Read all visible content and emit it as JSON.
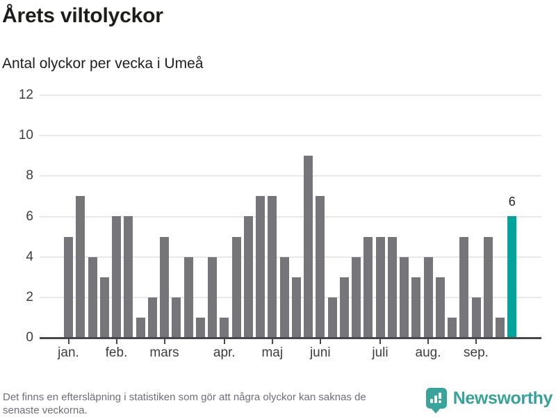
{
  "header": {
    "title": "Årets viltolyckor",
    "subtitle": "Antal olyckor per vecka i Umeå"
  },
  "chart_data": {
    "type": "bar",
    "title": "Årets viltolyckor",
    "subtitle": "Antal olyckor per vecka i Umeå",
    "x_unit": "vecka",
    "x": [
      1,
      2,
      3,
      4,
      5,
      6,
      7,
      8,
      9,
      10,
      11,
      12,
      13,
      14,
      15,
      16,
      17,
      18,
      19,
      20,
      21,
      22,
      23,
      24,
      25,
      26,
      27,
      28,
      29,
      30,
      31,
      32,
      33,
      34,
      35,
      36,
      37,
      38
    ],
    "values": [
      5,
      7,
      4,
      3,
      6,
      6,
      1,
      2,
      5,
      2,
      4,
      1,
      4,
      1,
      5,
      6,
      7,
      7,
      4,
      3,
      9,
      7,
      2,
      3,
      4,
      5,
      5,
      5,
      4,
      3,
      4,
      3,
      1,
      5,
      2,
      5,
      1,
      6
    ],
    "yticks": [
      0,
      2,
      4,
      6,
      8,
      10,
      12
    ],
    "ylim": [
      0,
      12
    ],
    "grid": true,
    "months": [
      {
        "label": "jan.",
        "week": 1
      },
      {
        "label": "feb.",
        "week": 5
      },
      {
        "label": "mars",
        "week": 9
      },
      {
        "label": "apr.",
        "week": 14
      },
      {
        "label": "maj",
        "week": 18
      },
      {
        "label": "juni",
        "week": 22
      },
      {
        "label": "juli",
        "week": 27
      },
      {
        "label": "aug.",
        "week": 31
      },
      {
        "label": "sep.",
        "week": 35
      }
    ],
    "bar_color": "#76767a",
    "highlight_color": "#00a49c",
    "highlight_last": true,
    "last_value_label": "6"
  },
  "footer": {
    "note_lines": [
      "Det finns en eftersläpning i statistiken som gör att några olyckor kan saknas de",
      "senaste veckorna."
    ],
    "brand": "Newsworthy",
    "brand_color": "#3aa39b",
    "logo_icon": "bar-chart-speech-bubble"
  }
}
